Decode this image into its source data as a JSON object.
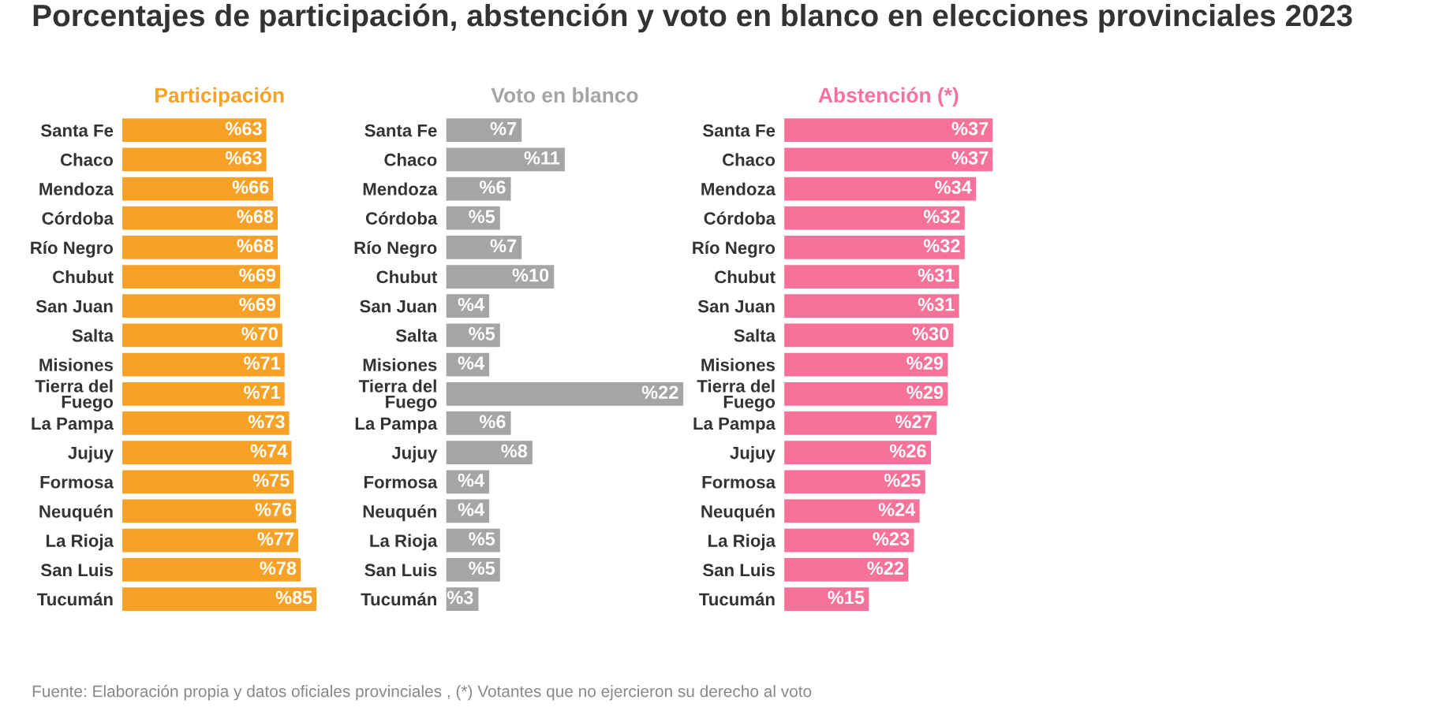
{
  "chart_data": [
    {
      "type": "bar",
      "orientation": "horizontal",
      "title": "Participación",
      "categories": [
        "Santa Fe",
        "Chaco",
        "Mendoza",
        "Córdoba",
        "Río Negro",
        "Chubut",
        "San Juan",
        "Salta",
        "Misiones",
        "Tierra del\nFuego",
        "La Pampa",
        "Jujuy",
        "Formosa",
        "Neuquén",
        "La Rioja",
        "San Luis",
        "Tucumán"
      ],
      "series": [
        {
          "color": "#f7a226",
          "values": [
            63,
            63,
            66,
            68,
            68,
            69,
            69,
            70,
            71,
            71,
            73,
            74,
            75,
            76,
            77,
            78,
            85
          ],
          "value_labels": [
            "%63",
            "%63",
            "%66",
            "%68",
            "%68",
            "%69",
            "%69",
            "%70",
            "%71",
            "%71",
            "%73",
            "%74",
            "%75",
            "%76",
            "%77",
            "%78",
            "%85"
          ]
        }
      ],
      "annotations": [
        "Porcentajes de participación, abstención y voto en blanco en elecciones provinciales 2023",
        "Fuente: Elaboración propia y datos oficiales provinciales , (*) Votantes que no ejercieron su derecho al voto"
      ]
    },
    {
      "type": "bar",
      "orientation": "horizontal",
      "title": "Voto en blanco",
      "categories": [
        "Santa Fe",
        "Chaco",
        "Mendoza",
        "Córdoba",
        "Río Negro",
        "Chubut",
        "San Juan",
        "Salta",
        "Misiones",
        "Tierra del\nFuego",
        "La Pampa",
        "Jujuy",
        "Formosa",
        "Neuquén",
        "La Rioja",
        "San Luis",
        "Tucumán"
      ],
      "series": [
        {
          "color": "#a5a5a5",
          "values": [
            7,
            11,
            6,
            5,
            7,
            10,
            4,
            5,
            4,
            22,
            6,
            8,
            4,
            4,
            5,
            5,
            3
          ],
          "value_labels": [
            "%7",
            "%11",
            "%6",
            "%5",
            "%7",
            "%10",
            "%4",
            "%5",
            "%4",
            "%22",
            "%6",
            "%8",
            "%4",
            "%4",
            "%5",
            "%5",
            "%3"
          ]
        }
      ]
    },
    {
      "type": "bar",
      "orientation": "horizontal",
      "title": "Abstención (*)",
      "categories": [
        "Santa Fe",
        "Chaco",
        "Mendoza",
        "Córdoba",
        "Río Negro",
        "Chubut",
        "San Juan",
        "Salta",
        "Misiones",
        "Tierra del\nFuego",
        "La Pampa",
        "Jujuy",
        "Formosa",
        "Neuquén",
        "La Rioja",
        "San Luis",
        "Tucumán"
      ],
      "series": [
        {
          "color": "#f7729a",
          "values": [
            37,
            37,
            34,
            32,
            32,
            31,
            31,
            30,
            29,
            29,
            27,
            26,
            25,
            24,
            23,
            22,
            15
          ],
          "value_labels": [
            "%37",
            "%37",
            "%34",
            "%32",
            "%32",
            "%31",
            "%31",
            "%30",
            "%29",
            "%29",
            "%27",
            "%26",
            "%25",
            "%24",
            "%23",
            "%22",
            "%15"
          ]
        }
      ]
    }
  ]
}
